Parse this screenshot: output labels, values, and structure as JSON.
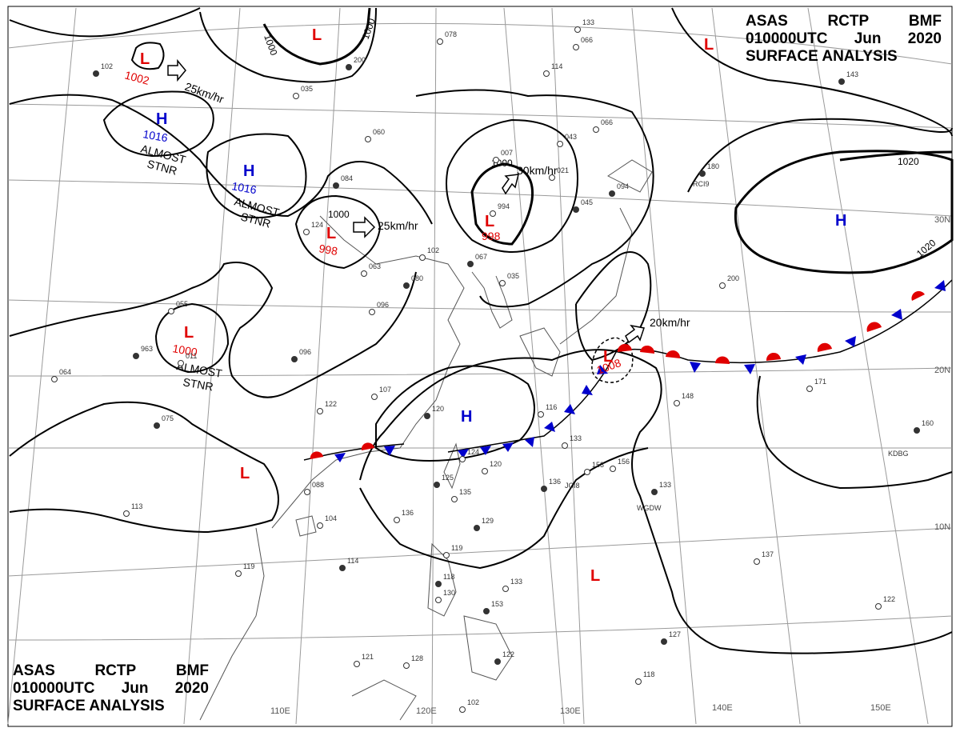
{
  "header": {
    "line1": [
      "ASAS",
      "RCTP",
      "BMF"
    ],
    "line2": [
      "010000UTC",
      "Jun",
      "2020"
    ],
    "line3": "SURFACE ANALYSIS"
  },
  "axes": {
    "lon_labels": [
      "110E",
      "120E",
      "130E",
      "140E",
      "150E"
    ],
    "lat_labels": [
      "30N",
      "20N",
      "10N"
    ]
  },
  "pressure_centers": [
    {
      "type": "L",
      "value": "1002",
      "color": "#e00000"
    },
    {
      "type": "L",
      "value": "",
      "color": "#e00000"
    },
    {
      "type": "H",
      "value": "1016",
      "color": "#0000cc"
    },
    {
      "type": "H",
      "value": "1016",
      "color": "#0000cc"
    },
    {
      "type": "L",
      "value": "998",
      "color": "#e00000"
    },
    {
      "type": "L",
      "value": "998",
      "color": "#e00000"
    },
    {
      "type": "L",
      "value": "1000",
      "color": "#e00000"
    },
    {
      "type": "H",
      "value": "",
      "color": "#0000cc"
    },
    {
      "type": "L",
      "value": "1008",
      "color": "#e00000"
    },
    {
      "type": "L",
      "value": "",
      "color": "#e00000"
    },
    {
      "type": "L",
      "value": "",
      "color": "#e00000"
    },
    {
      "type": "L",
      "value": "",
      "color": "#e00000"
    },
    {
      "type": "H",
      "value": "",
      "color": "#0000cc"
    }
  ],
  "movement_labels": [
    "25km/hr",
    "25km/hr",
    "30km/hr",
    "20km/hr"
  ],
  "stationary_labels": [
    {
      "line1": "ALMOST",
      "line2": "STNR"
    },
    {
      "line1": "ALMOST",
      "line2": "STNR"
    },
    {
      "line1": "ALMOST",
      "line2": "STNR"
    }
  ],
  "isobar_labels": [
    "1000",
    "1000",
    "1000",
    "1000",
    "1020",
    "1020"
  ],
  "front": {
    "type": "stationary",
    "warm_color": "#e00000",
    "cold_color": "#0000cc"
  },
  "station_readings": [
    "102",
    "035",
    "060",
    "084",
    "124",
    "063",
    "080",
    "096",
    "102",
    "067",
    "035",
    "066",
    "094",
    "043",
    "021",
    "045",
    "994",
    "007",
    "180",
    "200",
    "055",
    "963",
    "011",
    "064",
    "096",
    "107",
    "122",
    "075",
    "088",
    "104",
    "120",
    "124",
    "120",
    "125",
    "135",
    "136",
    "129",
    "116",
    "133",
    "136",
    "153",
    "156",
    "133",
    "148",
    "171",
    "160",
    "137",
    "122",
    "127",
    "118",
    "119",
    "114",
    "121",
    "128",
    "122",
    "102",
    "119",
    "118",
    "130",
    "133",
    "153",
    "066",
    "078",
    "200",
    "114",
    "133",
    "143",
    "113"
  ],
  "station_ids": [
    "RCI9",
    "JCI8",
    "WGDW",
    "KDBG"
  ],
  "colors": {
    "low": "#e00000",
    "high": "#0000cc",
    "isobar": "#000000",
    "grid": "#9a9a9a",
    "coast": "#555555"
  }
}
